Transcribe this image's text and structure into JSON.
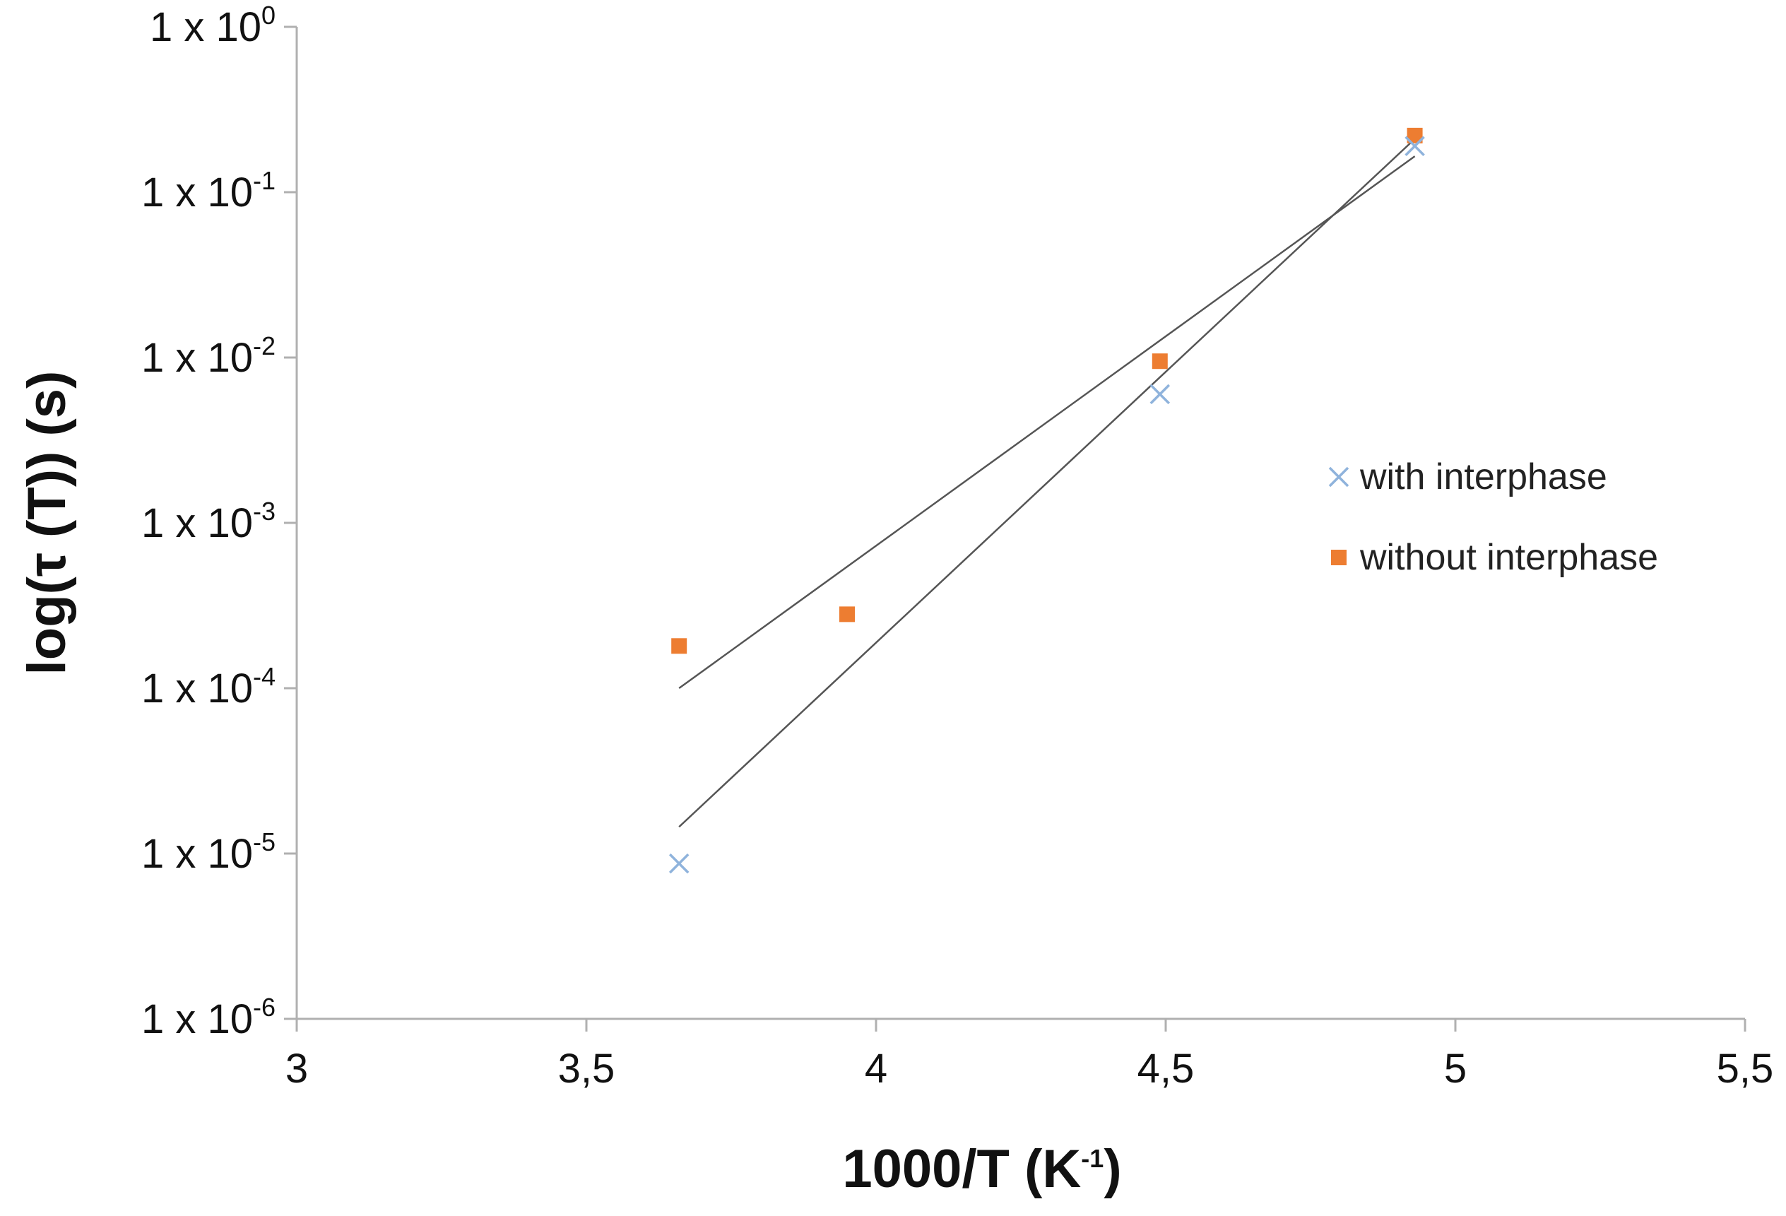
{
  "chart_data": {
    "type": "scatter",
    "xlabel": "1000/T (K-1)",
    "xlabel_main": "1000/T (K",
    "xlabel_sup": "-1",
    "xlabel_close": ")",
    "ylabel": "log(τ (T)) (s)",
    "xlim": [
      3,
      5.5
    ],
    "ylim_log10": [
      -6,
      0
    ],
    "x_ticks": [
      {
        "value": 3,
        "label": "3"
      },
      {
        "value": 3.5,
        "label": "3,5"
      },
      {
        "value": 4,
        "label": "4"
      },
      {
        "value": 4.5,
        "label": "4,5"
      },
      {
        "value": 5,
        "label": "5"
      },
      {
        "value": 5.5,
        "label": "5,5"
      }
    ],
    "y_ticks": [
      {
        "exp": 0,
        "base": "1 x 10",
        "sup": "0"
      },
      {
        "exp": -1,
        "base": "1 x 10",
        "sup": "-1"
      },
      {
        "exp": -2,
        "base": "1 x 10",
        "sup": "-2"
      },
      {
        "exp": -3,
        "base": "1 x 10",
        "sup": "-3"
      },
      {
        "exp": -4,
        "base": "1 x 10",
        "sup": "-4"
      },
      {
        "exp": -5,
        "base": "1 x 10",
        "sup": "-5"
      },
      {
        "exp": -6,
        "base": "1 x 10",
        "sup": "-6"
      }
    ],
    "series": [
      {
        "name": "with interphase",
        "marker": "x",
        "color": "#8fb3dc",
        "points": [
          {
            "x": 3.66,
            "y": 8.7e-06
          },
          {
            "x": 4.49,
            "y": 0.006
          },
          {
            "x": 4.93,
            "y": 0.19
          }
        ],
        "trendline": {
          "x": [
            3.66,
            4.93
          ],
          "y": [
            1.45e-05,
            0.21
          ]
        }
      },
      {
        "name": "without interphase",
        "marker": "square",
        "color": "#ed7d31",
        "points": [
          {
            "x": 3.66,
            "y": 0.00018
          },
          {
            "x": 3.95,
            "y": 0.00028
          },
          {
            "x": 4.49,
            "y": 0.0095
          },
          {
            "x": 4.93,
            "y": 0.22
          }
        ],
        "trendline": {
          "x": [
            3.66,
            4.93
          ],
          "y": [
            0.0001,
            0.165
          ]
        }
      }
    ],
    "trendline_color": "#555555",
    "axis_color": "#b0b0b0",
    "legend_position": "right"
  }
}
